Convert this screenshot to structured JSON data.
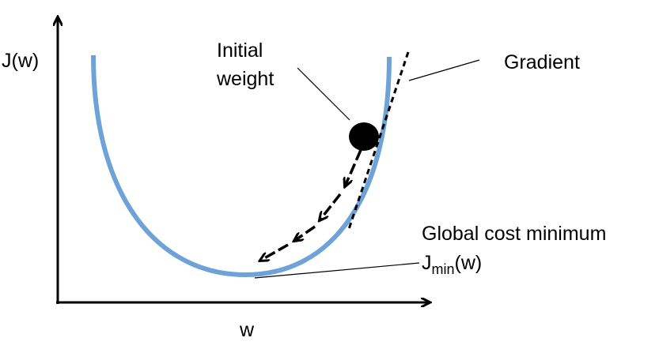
{
  "axes": {
    "y_label": "J(w)",
    "x_label": "w"
  },
  "annotations": {
    "initial_weight": [
      "Initial",
      "weight"
    ],
    "gradient": "Gradient",
    "global_minimum": {
      "title": "Global cost minimum",
      "symbol": "J",
      "subscript": "min",
      "argument": "(w)"
    }
  }
}
